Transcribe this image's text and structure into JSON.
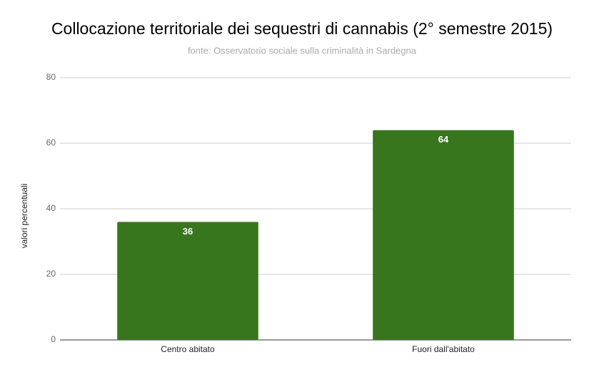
{
  "chart_data": {
    "type": "bar",
    "title": "Collocazione territoriale dei sequestri di cannabis (2° semestre  2015)",
    "subtitle": "fonte: Osservatorio sociale sulla criminalità in Sardegna",
    "y_label": "valori percentuali",
    "categories": [
      "Centro abitato",
      "Fuori dall'abitato"
    ],
    "values": [
      36,
      64
    ],
    "color": "#38761d",
    "ylim": [
      0,
      80
    ],
    "yticks": [
      0,
      20,
      40,
      60,
      80
    ],
    "grid": true
  }
}
